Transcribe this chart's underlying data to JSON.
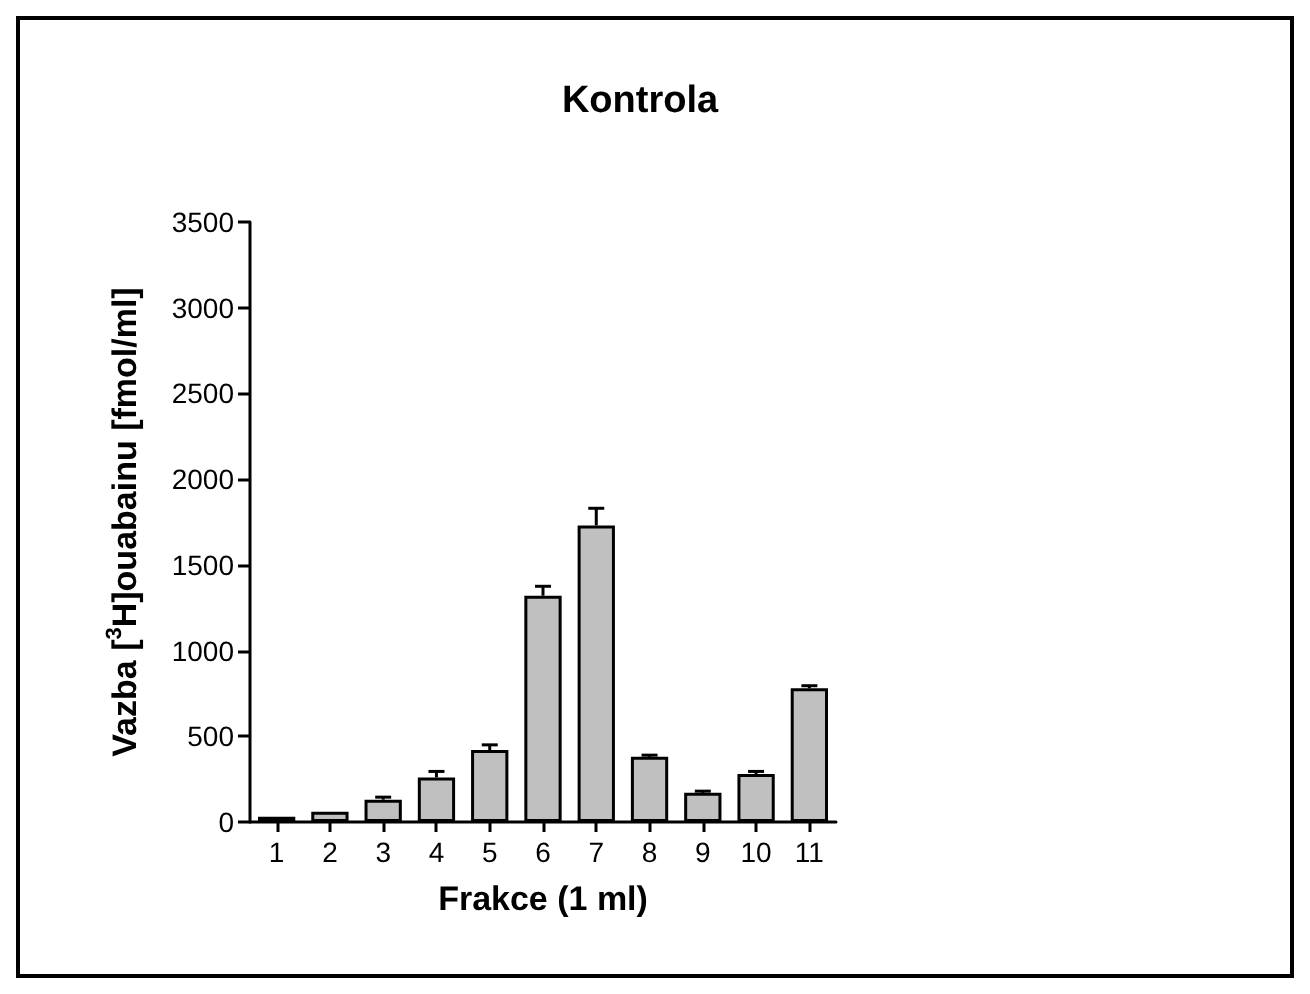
{
  "chart_data": {
    "type": "bar",
    "title": "Kontrola",
    "xlabel": "Frakce (1 ml)",
    "ylabel": "Vazba [$^{3}$H]ouabainu [fmol/ml]",
    "categories": [
      "1",
      "2",
      "3",
      "4",
      "5",
      "6",
      "7",
      "8",
      "9",
      "10",
      "11"
    ],
    "values": [
      30,
      60,
      130,
      260,
      420,
      1320,
      1730,
      380,
      170,
      280,
      780
    ],
    "errors": [
      null,
      null,
      15,
      35,
      30,
      55,
      100,
      10,
      10,
      15,
      15
    ],
    "color": "#c0c0c0",
    "ylim": [
      0,
      3500
    ],
    "yticks": [
      0,
      500,
      1000,
      1500,
      2000,
      2500,
      3000,
      3500
    ],
    "grid": false
  }
}
